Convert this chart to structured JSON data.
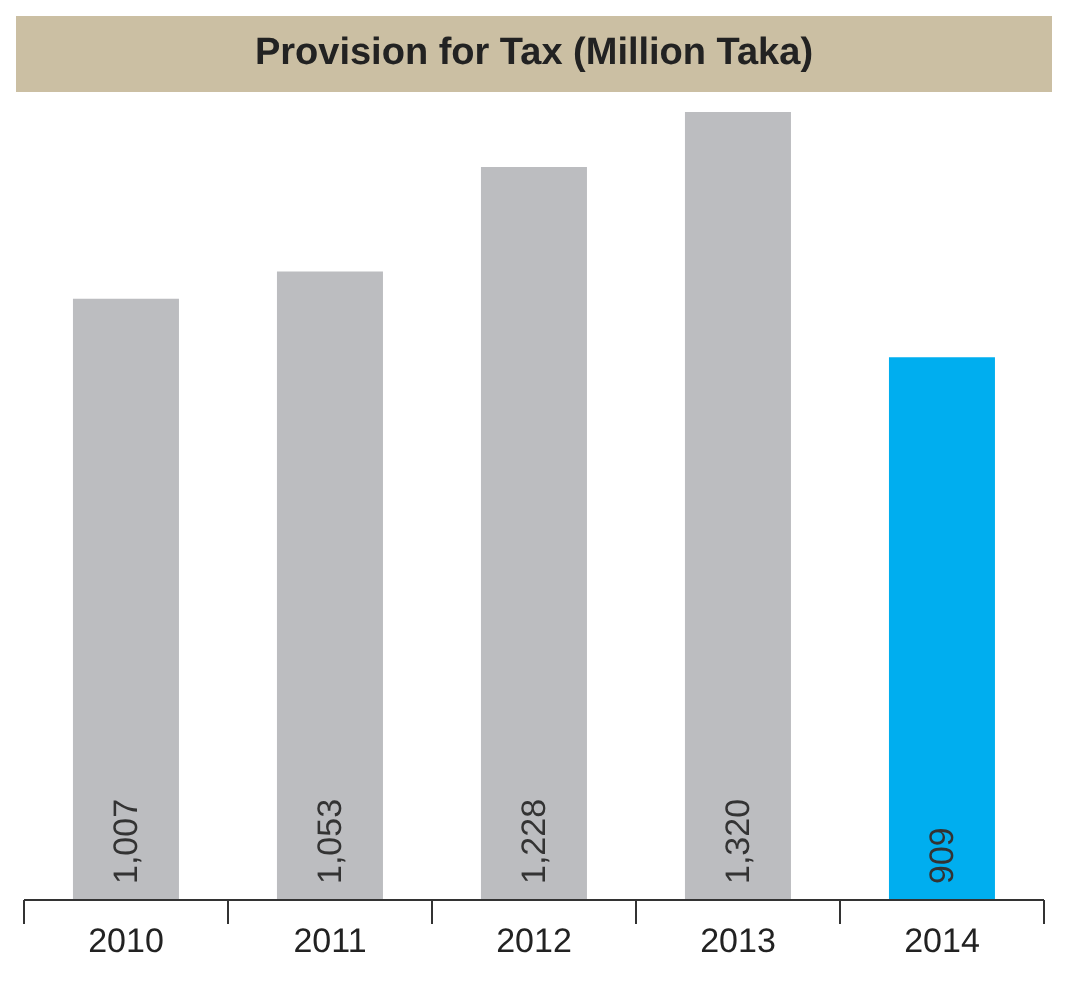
{
  "chart_data": {
    "type": "bar",
    "title": "Provision for Tax (Million Taka)",
    "categories": [
      "2010",
      "2011",
      "2012",
      "2013",
      "2014"
    ],
    "values": [
      1007,
      1053,
      1228,
      1320,
      909
    ],
    "value_labels": [
      "1,007",
      "1,053",
      "1,228",
      "1,320",
      "909"
    ],
    "colors": [
      "#bcbdc0",
      "#bcbdc0",
      "#bcbdc0",
      "#bcbdc0",
      "#00aeef"
    ]
  }
}
